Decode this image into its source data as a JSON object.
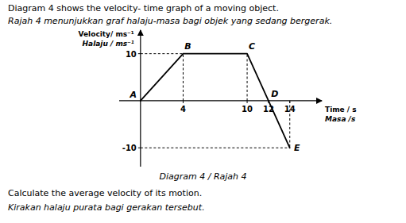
{
  "chart_data": {
    "type": "line",
    "title": "Diagram 4 shows the velocity- time graph of a moving object.",
    "subtitle": "Rajah 4 menunjukkan graf halaju-masa bagi objek yang sedang bergerak.",
    "caption": "Diagram 4 / Rajah 4",
    "annotations": [
      "Calculate the average velocity of its motion.",
      "Kirakan halaju purata bagi gerakan tersebut."
    ],
    "xlabel": [
      "Time / s",
      "Masa /s"
    ],
    "ylabel": [
      "Velocity/ ms⁻¹",
      "Halaju / ms⁻¹"
    ],
    "series": [
      {
        "x": [
          0,
          4,
          10,
          12,
          14
        ],
        "values": [
          0,
          10,
          10,
          0,
          -10
        ],
        "point_labels": [
          "A",
          "B",
          "C",
          "D",
          "E"
        ],
        "color": "#000000",
        "line_style": "solid"
      }
    ],
    "drop_lines": {
      "x": [
        4,
        10,
        14
      ],
      "y": [
        10,
        10,
        -10
      ]
    },
    "level_lines": [
      {
        "y": -10,
        "x_end": 14
      },
      {
        "y": 10,
        "x_end": 4
      }
    ],
    "xlim": [
      -2,
      17
    ],
    "ylim": [
      -14,
      15
    ],
    "xticks": [
      4,
      10,
      12,
      14
    ],
    "yticks": [
      -10,
      10
    ],
    "grid": false
  }
}
